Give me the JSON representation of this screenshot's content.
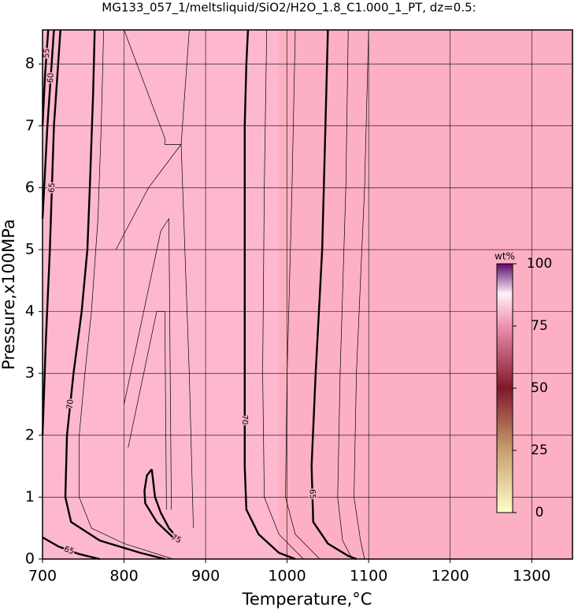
{
  "chart_data": {
    "type": "contour",
    "title": "MG133_057_1/meltsliquid/SiO2/H2O_1.8_C1.000_1_PT, dz=0.5:",
    "x_label": "Temperature,°C",
    "y_label": "Pressure,x100MPa",
    "xlim": [
      700,
      1350
    ],
    "ylim": [
      0,
      8.55
    ],
    "xticks": [
      700,
      800,
      900,
      1000,
      1100,
      1200,
      1300
    ],
    "yticks": [
      0,
      1,
      2,
      3,
      4,
      5,
      6,
      7,
      8
    ],
    "grid": true,
    "colorbar": {
      "label": "wt%",
      "lim": [
        0,
        100
      ],
      "ticks": [
        0,
        25,
        50,
        75,
        100
      ]
    },
    "contours": [
      {
        "level": 70,
        "style": "thick",
        "x": [
          764,
          762,
          758,
          755,
          748,
          738,
          730,
          728,
          735,
          770,
          820,
          850
        ],
        "y": [
          8.55,
          7.5,
          6,
          5,
          4,
          3,
          2,
          1,
          0.6,
          0.3,
          0.1,
          0
        ]
      },
      {
        "level": 70,
        "style": "thick",
        "x": [
          952,
          950,
          948,
          948,
          948,
          948,
          950,
          965,
          990,
          1010
        ],
        "y": [
          8.55,
          8,
          7,
          5,
          3,
          1.5,
          0.8,
          0.4,
          0.1,
          0
        ]
      },
      {
        "level": 65,
        "style": "thick",
        "x": [
          1050,
          1047,
          1043,
          1035,
          1030,
          1032,
          1050,
          1075,
          1085
        ],
        "y": [
          8.55,
          7,
          5,
          3,
          1.5,
          0.6,
          0.25,
          0.05,
          0
        ]
      },
      {
        "level": 75,
        "style": "thick",
        "x": [
          834,
          828,
          825,
          826,
          840,
          860,
          868,
          855,
          845,
          838,
          834
        ],
        "y": [
          1.45,
          1.35,
          1.1,
          0.9,
          0.6,
          0.35,
          0.3,
          0.5,
          0.75,
          1.0,
          1.45
        ]
      },
      {
        "level": 65,
        "style": "thick",
        "x": [
          700,
          704,
          709,
          714,
          722
        ],
        "y": [
          2.0,
          3.5,
          5.0,
          7.0,
          8.55
        ]
      },
      {
        "level": 60,
        "style": "thick",
        "x": [
          700,
          706,
          714
        ],
        "y": [
          5.5,
          7.0,
          8.55
        ]
      },
      {
        "level": 55,
        "style": "thick",
        "x": [
          700,
          703,
          707
        ],
        "y": [
          7.0,
          7.8,
          8.55
        ]
      },
      {
        "level": 65,
        "style": "thick",
        "x": [
          700,
          720,
          745,
          770
        ],
        "y": [
          0.35,
          0.2,
          0.08,
          0
        ]
      },
      {
        "level": 69.5,
        "style": "thin",
        "x": [
          775,
          772,
          768,
          760,
          752,
          745,
          745,
          760,
          800,
          860
        ],
        "y": [
          8.55,
          7,
          5.5,
          4,
          3,
          2,
          1,
          0.5,
          0.25,
          0
        ]
      },
      {
        "level": 70.5,
        "style": "thin",
        "x": [
          800,
          830,
          850,
          850,
          870,
          880
        ],
        "y": [
          8.55,
          7.5,
          6.8,
          6.7,
          6.7,
          8.55
        ]
      },
      {
        "level": 71,
        "style": "thin",
        "x": [
          790,
          830,
          870,
          880,
          885
        ],
        "y": [
          5,
          6,
          6.7,
          3,
          0.5
        ]
      },
      {
        "level": 72,
        "style": "thin",
        "x": [
          800,
          845,
          855,
          858
        ],
        "y": [
          2.5,
          5.3,
          5.5,
          0.8
        ]
      },
      {
        "level": 73,
        "style": "thin",
        "x": [
          805,
          840,
          850,
          852
        ],
        "y": [
          1.8,
          4.0,
          4.0,
          0.8
        ]
      },
      {
        "level": 69,
        "style": "thin",
        "x": [
          975,
          972,
          970,
          972,
          990,
          1020
        ],
        "y": [
          8.55,
          6,
          3,
          1,
          0.4,
          0
        ]
      },
      {
        "level": 67,
        "style": "thin",
        "x": [
          1010,
          1006,
          1000,
          998,
          1010,
          1040
        ],
        "y": [
          8.55,
          6,
          3,
          1,
          0.4,
          0
        ]
      },
      {
        "level": 64,
        "style": "thin",
        "x": [
          1075,
          1072,
          1065,
          1062,
          1068,
          1080
        ],
        "y": [
          8.55,
          6,
          3,
          1,
          0.3,
          0
        ]
      },
      {
        "level": 63,
        "style": "thin",
        "x": [
          1100,
          1095,
          1085,
          1082,
          1090,
          1095
        ],
        "y": [
          8.55,
          6,
          3,
          1,
          0.3,
          0
        ]
      }
    ]
  }
}
